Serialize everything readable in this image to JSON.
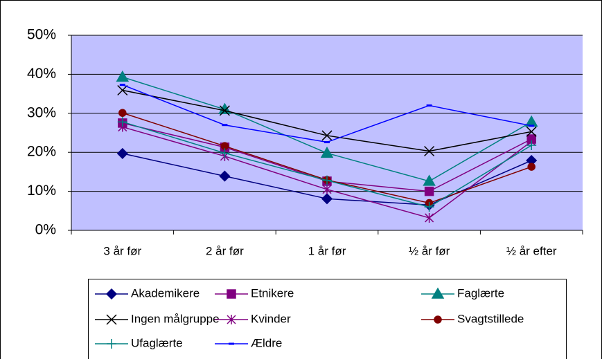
{
  "chart_data": {
    "type": "line",
    "categories": [
      "3 år før",
      "2 år før",
      "1 år før",
      "½ år før",
      "½ år efter"
    ],
    "ylim": [
      0,
      50
    ],
    "yticks": [
      {
        "value": 0,
        "label": "0%"
      },
      {
        "value": 10,
        "label": "10%"
      },
      {
        "value": 20,
        "label": "20%"
      },
      {
        "value": 30,
        "label": "30%"
      },
      {
        "value": 40,
        "label": "40%"
      },
      {
        "value": 50,
        "label": "50%"
      }
    ],
    "grid": true,
    "legend": "bottom",
    "series": [
      {
        "name": "Akademikere",
        "color": "#000080",
        "marker": "diamond",
        "values": [
          19.7,
          13.9,
          8.1,
          6.5,
          17.9
        ]
      },
      {
        "name": "Etnikere",
        "color": "#800080",
        "marker": "square",
        "values": [
          27.5,
          21.3,
          12.6,
          10.0,
          23.4
        ]
      },
      {
        "name": "Faglærte",
        "color": "#008080",
        "marker": "triangle",
        "values": [
          39.3,
          31.0,
          19.8,
          12.6,
          27.8
        ]
      },
      {
        "name": "Ingen målgruppe",
        "color": "#000000",
        "marker": "x",
        "values": [
          35.9,
          30.7,
          24.3,
          20.3,
          25.3
        ]
      },
      {
        "name": "Kvinder",
        "color": "#800080",
        "marker": "asterisk",
        "values": [
          26.5,
          19.0,
          10.5,
          3.2,
          22.8
        ]
      },
      {
        "name": "Svagtstillede",
        "color": "#800000",
        "marker": "circle",
        "values": [
          30.1,
          21.6,
          12.9,
          7.0,
          16.3
        ]
      },
      {
        "name": "Ufaglærte",
        "color": "#008080",
        "marker": "plus",
        "values": [
          27.8,
          19.8,
          12.8,
          6.0,
          21.8
        ]
      },
      {
        "name": "Ældre",
        "color": "#0000ff",
        "marker": "dash",
        "values": [
          37.3,
          27.0,
          22.6,
          32.0,
          26.8
        ]
      }
    ]
  }
}
